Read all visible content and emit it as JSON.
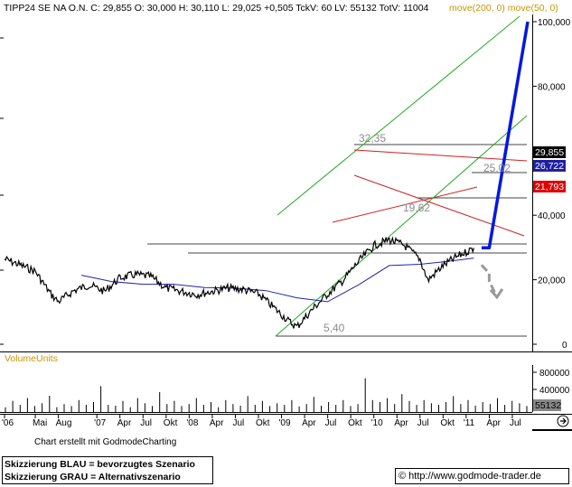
{
  "header": {
    "symbol_info": "TIPP24 SE NA O.N. C: 29,855 O: 30,000 H: 30,110 L: 29,025 +0,505 TckV: 60 LV: 55132 TotV: 11004",
    "moving_averages": "move(200, 0) move(50, 0)"
  },
  "chart_data": [
    {
      "type": "line",
      "title": "TIPP24 SE NA O.N.",
      "xlabel": "",
      "ylabel": "",
      "x_ticks": [
        "'06",
        "Mai",
        "Aug",
        "'07",
        "Apr",
        "Jul",
        "Okt",
        "'08",
        "Apr",
        "Jul",
        "Okt",
        "'09",
        "Apr",
        "Jul",
        "Okt",
        "'10",
        "Apr",
        "Jul",
        "Okt",
        "'11",
        "Apr",
        "Jul"
      ],
      "y_ticks": [
        "100,000",
        "80,000",
        "60,000",
        "40,000",
        "20,000",
        "0"
      ],
      "ylim": [
        0,
        100
      ],
      "price_series": {
        "name": "TIPP24 SE NA O.N.",
        "x": [
          "2006-01",
          "2006-03",
          "2006-05",
          "2006-07",
          "2006-08",
          "2006-10",
          "2006-12",
          "2007-02",
          "2007-04",
          "2007-06",
          "2007-08",
          "2007-10",
          "2007-12",
          "2008-02",
          "2008-04",
          "2008-06",
          "2008-08",
          "2008-10",
          "2008-12",
          "2009-02",
          "2009-03",
          "2009-05",
          "2009-07",
          "2009-09",
          "2009-11",
          "2010-01",
          "2010-03",
          "2010-05",
          "2010-07",
          "2010-08",
          "2010-10",
          "2010-12",
          "2011-01",
          "2011-02"
        ],
        "values": [
          26.4,
          24.6,
          22.6,
          15.6,
          13.2,
          16.6,
          18.4,
          16.4,
          20.6,
          21.6,
          21.0,
          17.4,
          16.4,
          15.4,
          16.4,
          17.4,
          17.0,
          15.6,
          11.4,
          7.0,
          5.4,
          10.8,
          15.6,
          19.8,
          25.6,
          30.6,
          32.4,
          30.6,
          26.4,
          19.8,
          24.4,
          27.4,
          28.6,
          29.855
        ]
      },
      "series": [
        {
          "name": "move(200, 0)",
          "color": "#2222aa",
          "x": [
            "2006-11",
            "2007-03",
            "2007-07",
            "2007-11",
            "2008-03",
            "2008-07",
            "2008-11",
            "2009-03",
            "2009-07",
            "2009-11",
            "2010-03",
            "2010-07",
            "2010-11",
            "2011-02"
          ],
          "values": [
            21.4,
            19.4,
            18.6,
            18.6,
            17.6,
            17.4,
            16.6,
            14.4,
            13.2,
            18.4,
            24.4,
            24.8,
            25.8,
            26.722
          ]
        },
        {
          "name": "move(50, 0)",
          "color": "#c89600",
          "x": [],
          "values": []
        }
      ],
      "price_labels": [
        {
          "value": "29,855",
          "bg": "#000000"
        },
        {
          "value": "26,722",
          "bg": "#2020a0"
        },
        {
          "value": "21,793",
          "bg": "#e00000"
        }
      ],
      "annotations": [
        "32,35",
        "25,02",
        "19,62",
        "5,40"
      ],
      "scenario_projection": {
        "blue": {
          "color": "#0018e0",
          "x": [
            "2011-03",
            "2011-04",
            "2011-09"
          ],
          "values": [
            29.9,
            29.9,
            100
          ]
        },
        "gray": {
          "color": "#9a9a9a",
          "x": [
            "2011-03",
            "2011-04",
            "2011-04",
            "2011-05"
          ],
          "values": [
            24.6,
            22.0,
            19.6,
            14.6
          ]
        }
      },
      "grid": false
    },
    {
      "type": "bar",
      "title": "VolumeUnits",
      "y_ticks": [
        "800000",
        "400000",
        "0"
      ],
      "last_value_label": "55132",
      "values": [
        0.12,
        0.28,
        0.18,
        0.35,
        0.15,
        0.22,
        0.41,
        0.12,
        0.2,
        0.15,
        0.3,
        0.18,
        0.25,
        0.65,
        0.18,
        0.16,
        0.28,
        0.12,
        0.35,
        0.22,
        0.15,
        0.5,
        0.2,
        0.28,
        0.15,
        0.2,
        0.35,
        0.18,
        0.25,
        0.12,
        0.3,
        0.2,
        0.16,
        0.4,
        0.18,
        0.28,
        0.15,
        0.22,
        0.18,
        0.3,
        0.14,
        0.2,
        0.38,
        0.16,
        0.25,
        0.18,
        0.3,
        0.15,
        0.2,
        0.85,
        0.3,
        0.25,
        0.35,
        0.2,
        0.45,
        0.28,
        0.18,
        0.3,
        0.22,
        0.18,
        0.25,
        0.4,
        0.2,
        0.3,
        0.16,
        0.25,
        0.2,
        0.35,
        0.18,
        0.28,
        0.22,
        0.15
      ]
    }
  ],
  "footer": {
    "credit": "Chart erstellt mit GodmodeCharting",
    "legend_line1": "Skizzierung BLAU = bevorzugtes Szenario",
    "legend_line2": "Skizzierung GRAU = Alternativszenario",
    "url": "© http://www.godmode-trader.de"
  }
}
